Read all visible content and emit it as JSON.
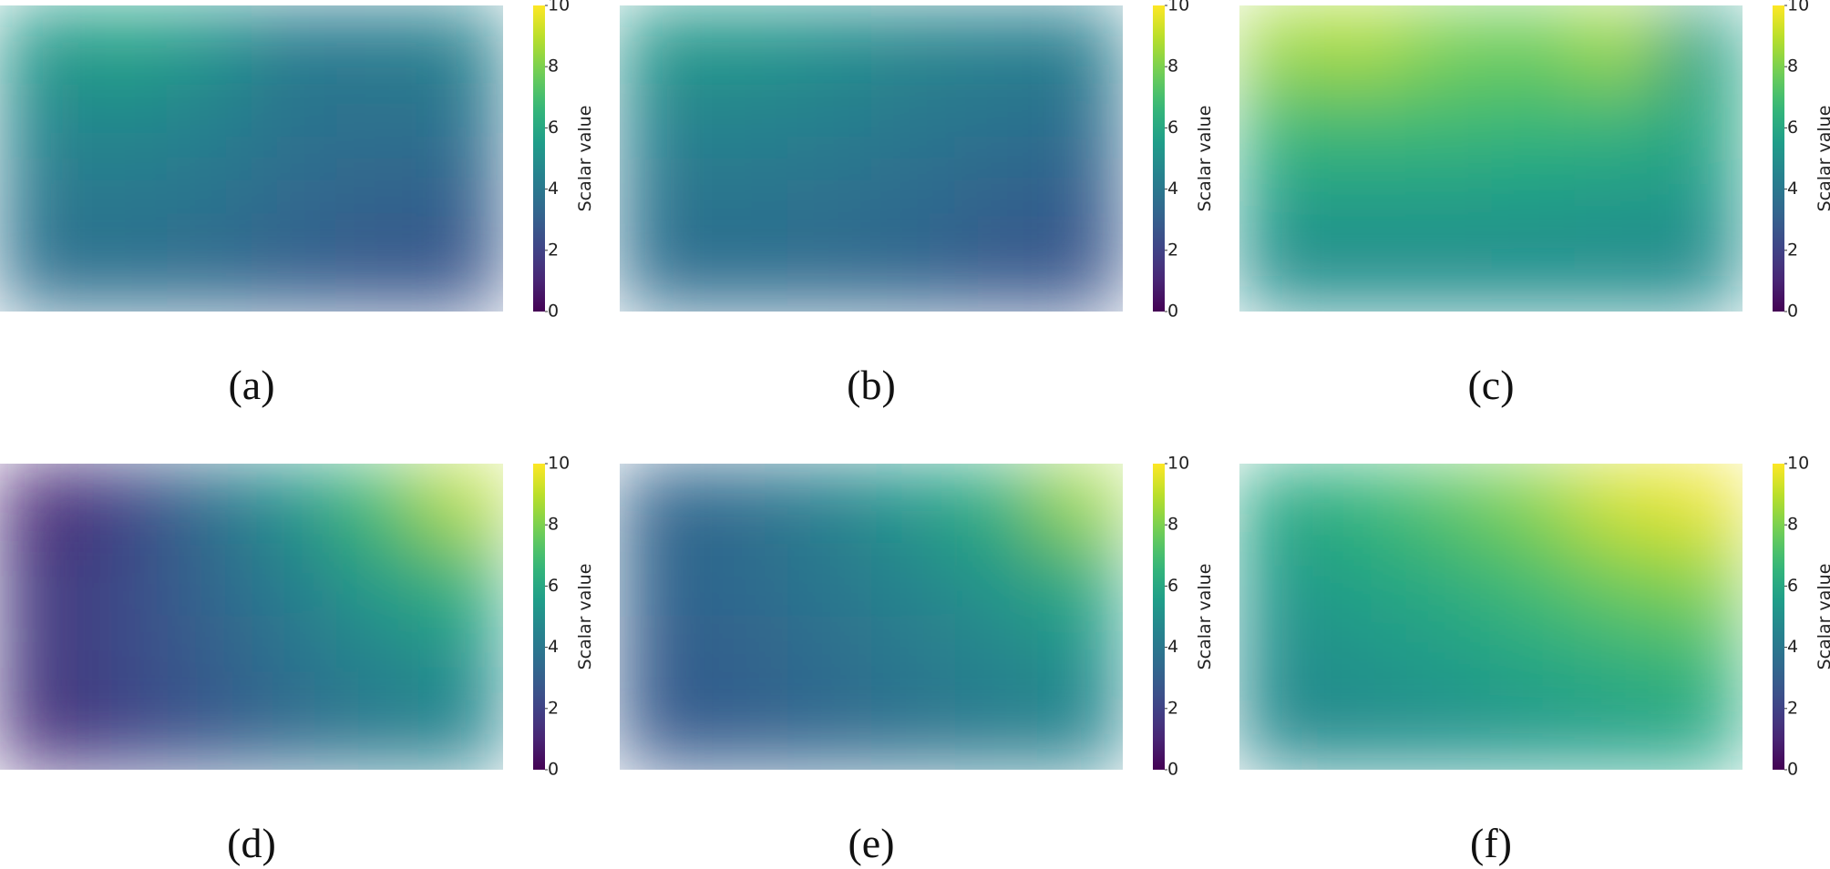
{
  "chart_data": [
    {
      "type": "heatmap",
      "title": "(a)",
      "colormap": "viridis",
      "colorbar_label": "Scalar value",
      "zlim": [
        0,
        10
      ],
      "zticks": [
        0,
        2,
        4,
        6,
        8,
        10
      ],
      "values": [
        [
          5.4,
          5.8,
          5.2,
          4.2,
          4.2,
          4.5
        ],
        [
          4.6,
          4.7,
          4.4,
          3.8,
          3.7,
          3.8
        ],
        [
          4.0,
          4.0,
          3.8,
          3.4,
          3.2,
          3.1
        ],
        [
          3.6,
          3.6,
          3.4,
          3.0,
          2.7,
          2.6
        ]
      ]
    },
    {
      "type": "heatmap",
      "title": "(b)",
      "colormap": "viridis",
      "colorbar_label": "Scalar value",
      "zlim": [
        0,
        10
      ],
      "zticks": [
        0,
        2,
        4,
        6,
        8,
        10
      ],
      "values": [
        [
          5.3,
          5.3,
          5.0,
          4.6,
          4.4,
          4.3
        ],
        [
          4.5,
          4.5,
          4.3,
          4.0,
          3.8,
          3.6
        ],
        [
          3.9,
          3.9,
          3.7,
          3.5,
          3.2,
          2.9
        ],
        [
          3.5,
          3.5,
          3.4,
          3.2,
          2.8,
          2.6
        ]
      ]
    },
    {
      "type": "heatmap",
      "title": "(c)",
      "colormap": "viridis",
      "colorbar_label": "Scalar value",
      "zlim": [
        0,
        10
      ],
      "zticks": [
        0,
        2,
        4,
        6,
        8,
        10
      ],
      "values": [
        [
          8.6,
          8.8,
          8.0,
          7.8,
          8.6,
          5.6
        ],
        [
          6.8,
          6.9,
          6.8,
          6.7,
          6.6,
          6.0
        ],
        [
          5.6,
          5.6,
          5.6,
          5.5,
          5.4,
          5.3
        ],
        [
          4.8,
          4.8,
          4.8,
          4.8,
          4.8,
          4.7
        ]
      ]
    },
    {
      "type": "heatmap",
      "title": "(d)",
      "colormap": "viridis",
      "colorbar_label": "Scalar value",
      "zlim": [
        0,
        10
      ],
      "zticks": [
        0,
        2,
        4,
        6,
        8,
        10
      ],
      "values": [
        [
          1.0,
          2.0,
          3.6,
          5.2,
          7.0,
          9.0
        ],
        [
          1.5,
          2.3,
          3.3,
          4.4,
          5.6,
          6.6
        ],
        [
          1.6,
          2.3,
          3.0,
          3.8,
          4.6,
          5.2
        ],
        [
          1.2,
          2.0,
          2.7,
          3.4,
          4.0,
          4.4
        ]
      ]
    },
    {
      "type": "heatmap",
      "title": "(e)",
      "colormap": "viridis",
      "colorbar_label": "Scalar value",
      "zlim": [
        0,
        10
      ],
      "zticks": [
        0,
        2,
        4,
        6,
        8,
        10
      ],
      "values": [
        [
          3.2,
          3.6,
          4.4,
          5.4,
          6.4,
          8.6
        ],
        [
          3.2,
          3.5,
          4.0,
          4.6,
          5.3,
          6.2
        ],
        [
          2.9,
          3.2,
          3.6,
          4.1,
          4.6,
          5.1
        ],
        [
          2.8,
          3.0,
          3.3,
          3.7,
          4.1,
          4.4
        ]
      ]
    },
    {
      "type": "heatmap",
      "title": "(f)",
      "colormap": "viridis",
      "colorbar_label": "Scalar value",
      "zlim": [
        0,
        10
      ],
      "zticks": [
        0,
        2,
        4,
        6,
        8,
        10
      ],
      "values": [
        [
          6.0,
          6.6,
          7.4,
          8.2,
          9.4,
          9.8
        ],
        [
          5.4,
          5.8,
          6.3,
          7.0,
          7.8,
          8.2
        ],
        [
          4.9,
          5.2,
          5.6,
          6.0,
          6.4,
          6.8
        ],
        [
          4.6,
          4.8,
          5.0,
          5.3,
          5.6,
          5.8
        ]
      ]
    }
  ]
}
